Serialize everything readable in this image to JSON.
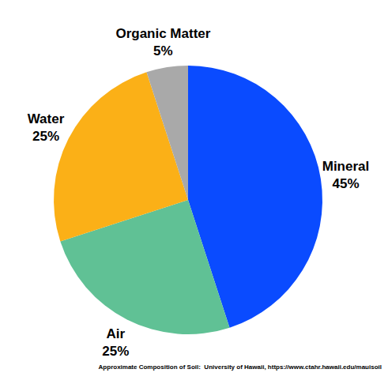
{
  "chart_data": {
    "type": "pie",
    "categories": [
      "Mineral",
      "Air",
      "Water",
      "Organic Matter"
    ],
    "values": [
      45,
      25,
      25,
      5
    ],
    "value_labels": [
      "45%",
      "25%",
      "25%",
      "5%"
    ],
    "colors": [
      "#0a4bff",
      "#60c195",
      "#fbb017",
      "#a9a9a9"
    ],
    "data_labels": true,
    "annotations": [
      "Approximate Composition of Soil:  University of Hawaii, https://www.ctahr.hawaii.edu/mauisoil"
    ]
  }
}
